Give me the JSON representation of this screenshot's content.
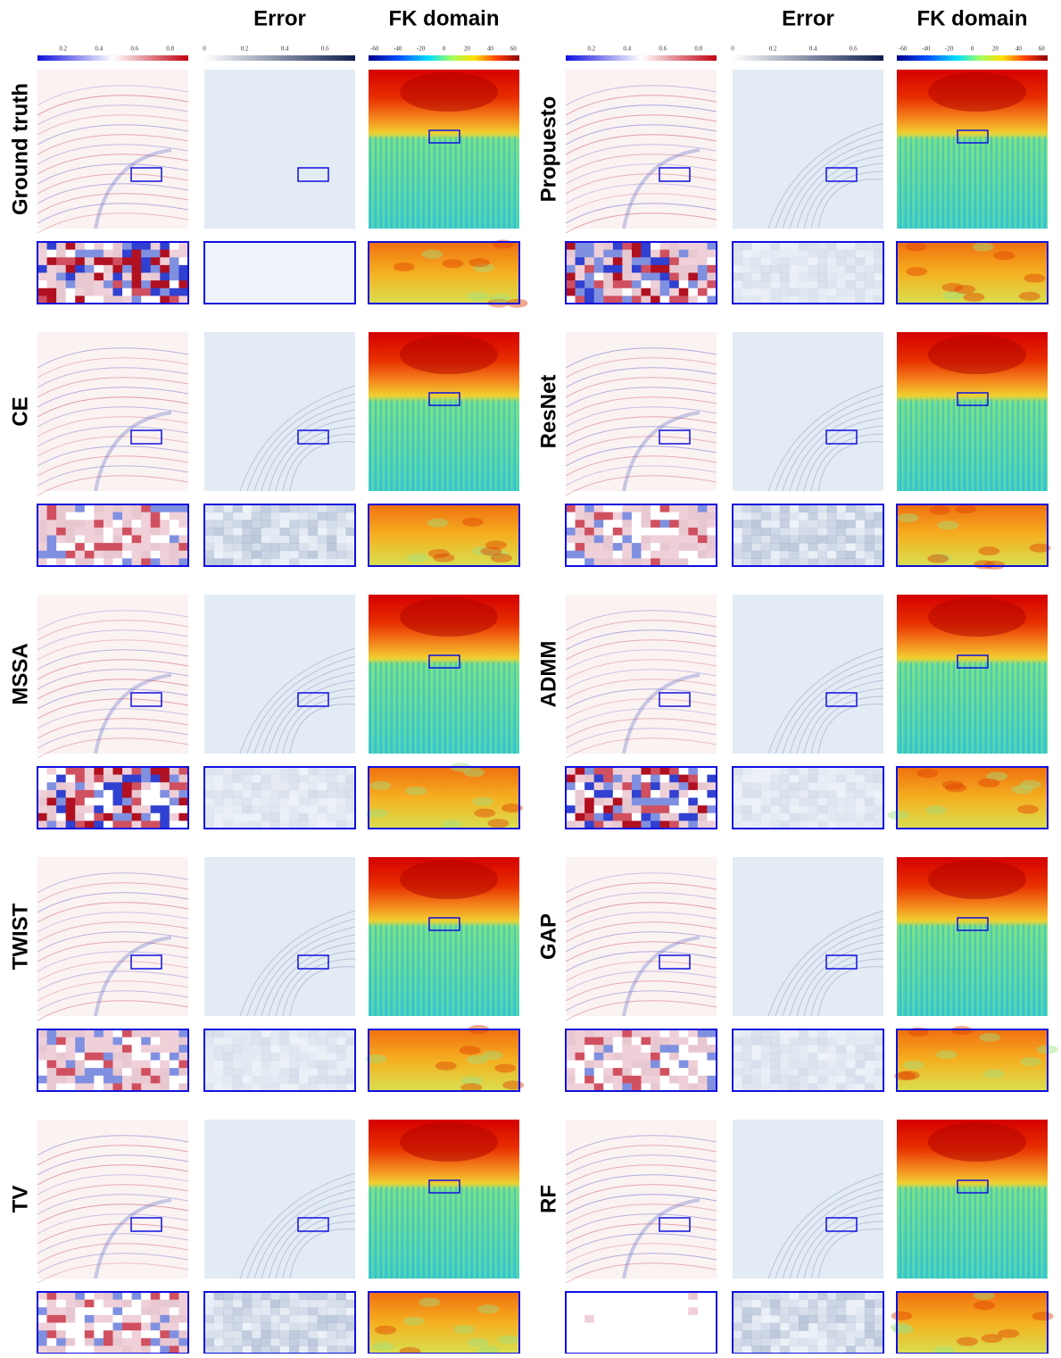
{
  "panels": [
    {
      "headers": [
        "Error",
        "FK domain"
      ],
      "colorbars": [
        {
          "ticks": [
            0.2,
            0.4,
            0.6,
            0.8
          ]
        },
        {
          "ticks": [
            0,
            0.2,
            0.4,
            0.6
          ]
        },
        {
          "ticks": [
            -60,
            -40,
            -20,
            0,
            20,
            40,
            60
          ]
        }
      ],
      "rows": [
        "Ground truth",
        "CE",
        "MSSA",
        "TWIST",
        "TV"
      ]
    },
    {
      "headers": [
        "Error",
        "FK domain"
      ],
      "colorbars": [
        {
          "ticks": [
            0.2,
            0.4,
            0.6,
            0.8
          ]
        },
        {
          "ticks": [
            0,
            0.2,
            0.4,
            0.6
          ]
        },
        {
          "ticks": [
            -60,
            -40,
            -20,
            0,
            20,
            40,
            60
          ]
        }
      ],
      "rows": [
        "Propuesto",
        "ResNet",
        "ADMM",
        "GAP",
        "RF"
      ]
    }
  ]
}
